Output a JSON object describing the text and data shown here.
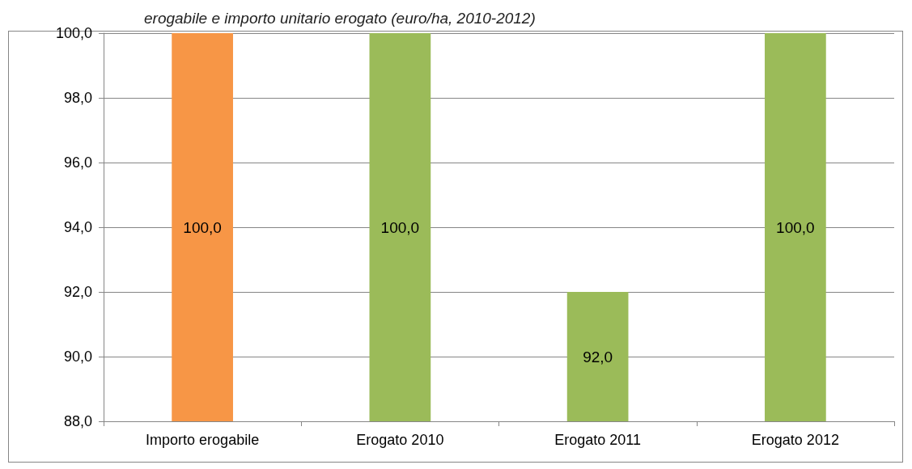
{
  "chart_data": {
    "type": "bar",
    "title": "erogabile e importo unitario erogato (euro/ha, 2010-2012)",
    "categories": [
      "Importo erogabile",
      "Erogato 2010",
      "Erogato 2011",
      "Erogato 2012"
    ],
    "values": [
      100.0,
      100.0,
      92.0,
      100.0
    ],
    "colors": [
      "#f79646",
      "#9bbb59",
      "#9bbb59",
      "#9bbb59"
    ],
    "value_labels": [
      "100,0",
      "100,0",
      "92,0",
      "100,0"
    ],
    "ylim": [
      88,
      100
    ],
    "yticks": [
      {
        "value": 88,
        "label": "88,0"
      },
      {
        "value": 90,
        "label": "90,0"
      },
      {
        "value": 92,
        "label": "92,0"
      },
      {
        "value": 94,
        "label": "94,0"
      },
      {
        "value": 96,
        "label": "96,0"
      },
      {
        "value": 98,
        "label": "98,0"
      },
      {
        "value": 100,
        "label": "100,0"
      }
    ],
    "grid": "y"
  }
}
